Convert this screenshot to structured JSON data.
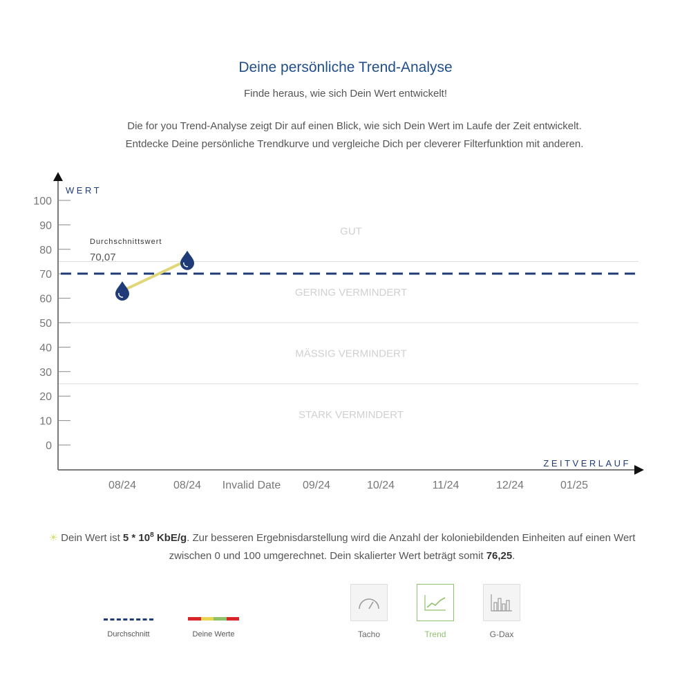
{
  "header": {
    "title": "Deine persönliche Trend-Analyse",
    "subtitle": "Finde heraus, wie sich Dein Wert entwickelt!",
    "intro_line1": "Die for you Trend-Analyse zeigt Dir auf einen Blick, wie sich Dein Wert im Laufe der Zeit entwickelt.",
    "intro_line2": "Entdecke Deine persönliche Trendkurve und vergleiche Dich per cleverer Filterfunktion mit anderen."
  },
  "chart_data": {
    "type": "line",
    "ylabel": "WERT",
    "xlabel": "ZEITVERLAUF",
    "ylim": [
      0,
      100
    ],
    "y_ticks": [
      0,
      10,
      20,
      30,
      40,
      50,
      60,
      70,
      80,
      90,
      100
    ],
    "categories": [
      "08/24",
      "08/24",
      "Invalid Date",
      "09/24",
      "10/24",
      "11/24",
      "12/24",
      "01/25"
    ],
    "series": [
      {
        "values": [
          63,
          75.5,
          null,
          null,
          null,
          null,
          null,
          null
        ]
      }
    ],
    "average": {
      "label": "Durchschnittswert",
      "display": "70,07",
      "value": 70.07
    },
    "zones": [
      {
        "label": "GUT",
        "from": 75,
        "to": 100
      },
      {
        "label": "GERING VERMINDERT",
        "from": 50,
        "to": 75
      },
      {
        "label": "MÄSSIG VERMINDERT",
        "from": 25,
        "to": 50
      },
      {
        "label": "STARK VERMINDERT",
        "from": 0,
        "to": 25
      }
    ],
    "grid": false,
    "colors": {
      "line": "#e0d77a",
      "marker": "#1f3c78",
      "average": "#1f3c78",
      "zone_text": "#d0d0d0",
      "axis": "#7a7a7a"
    }
  },
  "result": {
    "prefix": "Dein Wert ist ",
    "value_base": "5 * 10",
    "value_exp": "8",
    "value_unit": " KbE/g",
    "middle": ". Zur besseren Ergebnisdarstellung wird die Anzahl der koloniebildenden Einheiten auf einen Wert zwischen 0 und 100 umgerechnet. Dein skalierter Wert beträgt somit ",
    "scaled": "76,25",
    "suffix": "."
  },
  "legend": {
    "average_label": "Durchschnitt",
    "values_label": "Deine Werte",
    "values_colors": [
      "#d9262b",
      "#e9d552",
      "#8fc16b",
      "#d9262b"
    ]
  },
  "views": [
    {
      "label": "Tacho",
      "icon": "gauge-icon"
    },
    {
      "label": "Trend",
      "icon": "trend-chart-icon",
      "active": true
    },
    {
      "label": "G-Dax",
      "icon": "bar-chart-icon"
    }
  ]
}
